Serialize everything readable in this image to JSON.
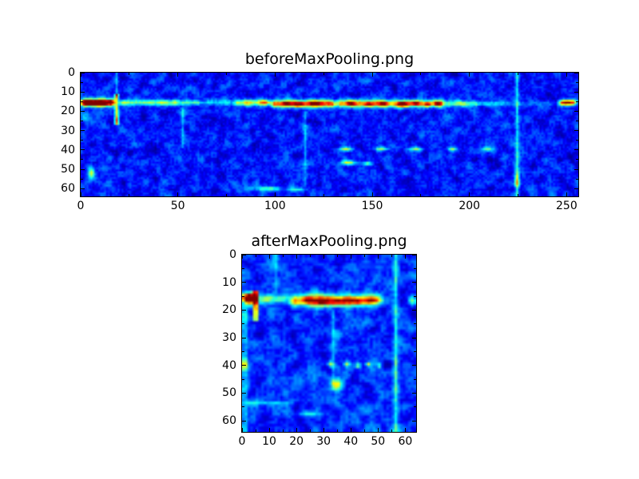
{
  "figure": {
    "colors": {
      "background": "#ffffff",
      "axis": "#000000",
      "text": "#000000",
      "colormap_low": "#000080",
      "colormap_mid": "#00ffff",
      "colormap_high": "#800000"
    }
  },
  "chart_data": [
    {
      "type": "heatmap",
      "title": "beforeMaxPooling.png",
      "colormap": "jet",
      "grid": false,
      "x_range": [
        0,
        256
      ],
      "y_range": [
        0,
        64
      ],
      "x_ticks": [
        0,
        50,
        100,
        150,
        200,
        250
      ],
      "y_ticks": [
        0,
        10,
        20,
        30,
        40,
        50,
        60
      ],
      "x_minor_step": 25,
      "y_minor_step": 5,
      "grid_cols": 256,
      "grid_rows": 64,
      "noise": {
        "seed": 11,
        "base": 0.02,
        "amp": 0.5
      },
      "features": {
        "bands": [
          {
            "x0": 0,
            "x1": 17,
            "y": 15,
            "ry": 1.9,
            "v": 0.95
          },
          {
            "x0": 19,
            "x1": 50,
            "y": 15,
            "ry": 1.5,
            "v": 0.4
          },
          {
            "x0": 50,
            "x1": 62,
            "y": 15,
            "ry": 1.3,
            "v": 0.3
          },
          {
            "x0": 62,
            "x1": 78,
            "y": 15,
            "ry": 1.3,
            "v": 0.18
          },
          {
            "x0": 78,
            "x1": 97,
            "y": 15,
            "ry": 1.6,
            "v": 0.45
          },
          {
            "x0": 97,
            "x1": 131,
            "y": 15.5,
            "ry": 1.8,
            "v": 0.62
          },
          {
            "x0": 131,
            "x1": 187,
            "y": 15.5,
            "ry": 1.8,
            "v": 0.6
          },
          {
            "x0": 187,
            "x1": 205,
            "y": 15.5,
            "ry": 1.4,
            "v": 0.33
          },
          {
            "x0": 205,
            "x1": 222,
            "y": 15.5,
            "ry": 1.2,
            "v": 0.2
          },
          {
            "x0": 222,
            "x1": 244,
            "y": 15.5,
            "ry": 1.2,
            "v": 0.1
          },
          {
            "x0": 245,
            "x1": 256,
            "y": 15,
            "ry": 1.5,
            "v": 0.62
          }
        ],
        "blobs": [
          {
            "x": 3,
            "y": 15,
            "rx": 3,
            "ry": 1.4,
            "v": 0.55
          },
          {
            "x": 10,
            "y": 15.5,
            "rx": 2.5,
            "ry": 1.3,
            "v": 0.5
          },
          {
            "x": 15,
            "y": 14.5,
            "rx": 2,
            "ry": 1.2,
            "v": 0.35
          },
          {
            "x": 95,
            "y": 15,
            "rx": 3,
            "ry": 1.3,
            "v": 0.25
          },
          {
            "x": 105,
            "y": 15.5,
            "rx": 3,
            "ry": 1.3,
            "v": 0.35
          },
          {
            "x": 112,
            "y": 16,
            "rx": 2.5,
            "ry": 1.3,
            "v": 0.45
          },
          {
            "x": 120,
            "y": 15.5,
            "rx": 2.5,
            "ry": 1.3,
            "v": 0.42
          },
          {
            "x": 138,
            "y": 15.5,
            "rx": 3,
            "ry": 1.2,
            "v": 0.3
          },
          {
            "x": 148,
            "y": 16,
            "rx": 2,
            "ry": 1.1,
            "v": 0.3
          },
          {
            "x": 155,
            "y": 15.5,
            "rx": 2.5,
            "ry": 1.2,
            "v": 0.35
          },
          {
            "x": 165,
            "y": 16,
            "rx": 2.5,
            "ry": 1.2,
            "v": 0.35
          },
          {
            "x": 172,
            "y": 15.5,
            "rx": 2,
            "ry": 1.1,
            "v": 0.38
          },
          {
            "x": 178,
            "y": 16,
            "rx": 2,
            "ry": 1.1,
            "v": 0.32
          },
          {
            "x": 183,
            "y": 15.5,
            "rx": 2,
            "ry": 1.1,
            "v": 0.3
          },
          {
            "x": 250,
            "y": 15,
            "rx": 3,
            "ry": 1.2,
            "v": 0.3
          },
          {
            "x": 136,
            "y": 39,
            "rx": 3,
            "ry": 1,
            "v": 0.42
          },
          {
            "x": 154,
            "y": 39,
            "rx": 3,
            "ry": 1,
            "v": 0.4
          },
          {
            "x": 172,
            "y": 39,
            "rx": 3,
            "ry": 1,
            "v": 0.4
          },
          {
            "x": 191,
            "y": 39,
            "rx": 2.5,
            "ry": 1,
            "v": 0.38
          },
          {
            "x": 209,
            "y": 39,
            "rx": 2.5,
            "ry": 1,
            "v": 0.35
          },
          {
            "x": 137,
            "y": 46,
            "rx": 4,
            "ry": 1.1,
            "v": 0.45
          },
          {
            "x": 147,
            "y": 46.5,
            "rx": 2.5,
            "ry": 1,
            "v": 0.4
          },
          {
            "x": 5,
            "y": 51,
            "rx": 1.6,
            "ry": 3,
            "v": 0.38
          },
          {
            "x": 96,
            "y": 59.5,
            "rx": 7,
            "ry": 1,
            "v": 0.32
          },
          {
            "x": 110,
            "y": 60,
            "rx": 5,
            "ry": 1,
            "v": 0.28
          },
          {
            "x": 224,
            "y": 55,
            "rx": 1.2,
            "ry": 4,
            "v": 0.3
          },
          {
            "x": 3,
            "y": 23,
            "rx": 4,
            "ry": 3,
            "v": 0.15
          }
        ],
        "vlines": [
          {
            "x": 18,
            "y0": 11,
            "y1": 26,
            "rx": 1.0,
            "v": 0.6
          },
          {
            "x": 18,
            "y0": 0,
            "y1": 11,
            "rx": 0.8,
            "v": 0.2
          },
          {
            "x": 52,
            "y0": 18,
            "y1": 38,
            "rx": 0.8,
            "v": 0.15
          },
          {
            "x": 115,
            "y0": 20,
            "y1": 58,
            "rx": 0.9,
            "v": 0.13
          },
          {
            "x": 224,
            "y0": 0,
            "y1": 63,
            "rx": 0.9,
            "v": 0.22
          }
        ]
      }
    },
    {
      "type": "heatmap",
      "title": "afterMaxPooling.png",
      "colormap": "jet",
      "grid": false,
      "x_range": [
        0,
        64
      ],
      "y_range": [
        0,
        64
      ],
      "x_ticks": [
        0,
        10,
        20,
        30,
        40,
        50,
        60
      ],
      "y_ticks": [
        0,
        10,
        20,
        30,
        40,
        50,
        60
      ],
      "x_minor_step": 5,
      "y_minor_step": 5,
      "grid_cols": 64,
      "grid_rows": 64,
      "noise": {
        "seed": 42,
        "base": 0.03,
        "amp": 0.55
      },
      "features": {
        "bands": [
          {
            "x0": 0,
            "x1": 5,
            "y": 15.5,
            "ry": 1.9,
            "v": 0.95
          },
          {
            "x0": 5,
            "x1": 17,
            "y": 15.5,
            "ry": 1.4,
            "v": 0.28
          },
          {
            "x0": 17,
            "x1": 51,
            "y": 16,
            "ry": 2.0,
            "v": 0.6
          },
          {
            "x0": 61,
            "x1": 64,
            "y": 16,
            "ry": 1.5,
            "v": 0.55
          },
          {
            "x0": 0,
            "x1": 18,
            "y": 53,
            "ry": 0.9,
            "v": 0.16
          }
        ],
        "blobs": [
          {
            "x": 1.5,
            "y": 15,
            "rx": 2,
            "ry": 1.5,
            "v": 0.5
          },
          {
            "x": 24,
            "y": 16,
            "rx": 2,
            "ry": 1.3,
            "v": 0.3
          },
          {
            "x": 29,
            "y": 16.5,
            "rx": 2,
            "ry": 1.2,
            "v": 0.45
          },
          {
            "x": 35,
            "y": 16.5,
            "rx": 2.5,
            "ry": 1.3,
            "v": 0.3
          },
          {
            "x": 42,
            "y": 16.5,
            "rx": 2.5,
            "ry": 1.2,
            "v": 0.28
          },
          {
            "x": 47,
            "y": 16,
            "rx": 2,
            "ry": 1.2,
            "v": 0.3
          },
          {
            "x": 32,
            "y": 39,
            "rx": 1,
            "ry": 0.9,
            "v": 0.42
          },
          {
            "x": 38,
            "y": 39,
            "rx": 1,
            "ry": 0.9,
            "v": 0.4
          },
          {
            "x": 42,
            "y": 39.5,
            "rx": 0.9,
            "ry": 0.8,
            "v": 0.38
          },
          {
            "x": 46,
            "y": 39,
            "rx": 0.9,
            "ry": 0.8,
            "v": 0.36
          },
          {
            "x": 50,
            "y": 39.5,
            "rx": 0.9,
            "ry": 0.8,
            "v": 0.34
          },
          {
            "x": 34.5,
            "y": 46.5,
            "rx": 2.2,
            "ry": 2.2,
            "v": 0.5
          },
          {
            "x": 24,
            "y": 57,
            "rx": 3,
            "ry": 0.9,
            "v": 0.3
          },
          {
            "x": 0.5,
            "y": 39,
            "rx": 1,
            "ry": 2,
            "v": 0.35
          }
        ],
        "vlines": [
          {
            "x": 4.5,
            "y0": 13,
            "y1": 23,
            "rx": 0.9,
            "v": 0.75
          },
          {
            "x": 56,
            "y0": 0,
            "y1": 63,
            "rx": 0.9,
            "v": 0.2
          },
          {
            "x": 56,
            "y0": 37,
            "y1": 52,
            "rx": 0.9,
            "v": 0.12
          },
          {
            "x": 33,
            "y0": 20,
            "y1": 46,
            "rx": 0.8,
            "v": 0.12
          },
          {
            "x": 12,
            "y0": 0,
            "y1": 13,
            "rx": 0.8,
            "v": 0.12
          },
          {
            "x": 0.5,
            "y0": 18,
            "y1": 63,
            "rx": 1.1,
            "v": 0.18
          }
        ]
      }
    }
  ]
}
